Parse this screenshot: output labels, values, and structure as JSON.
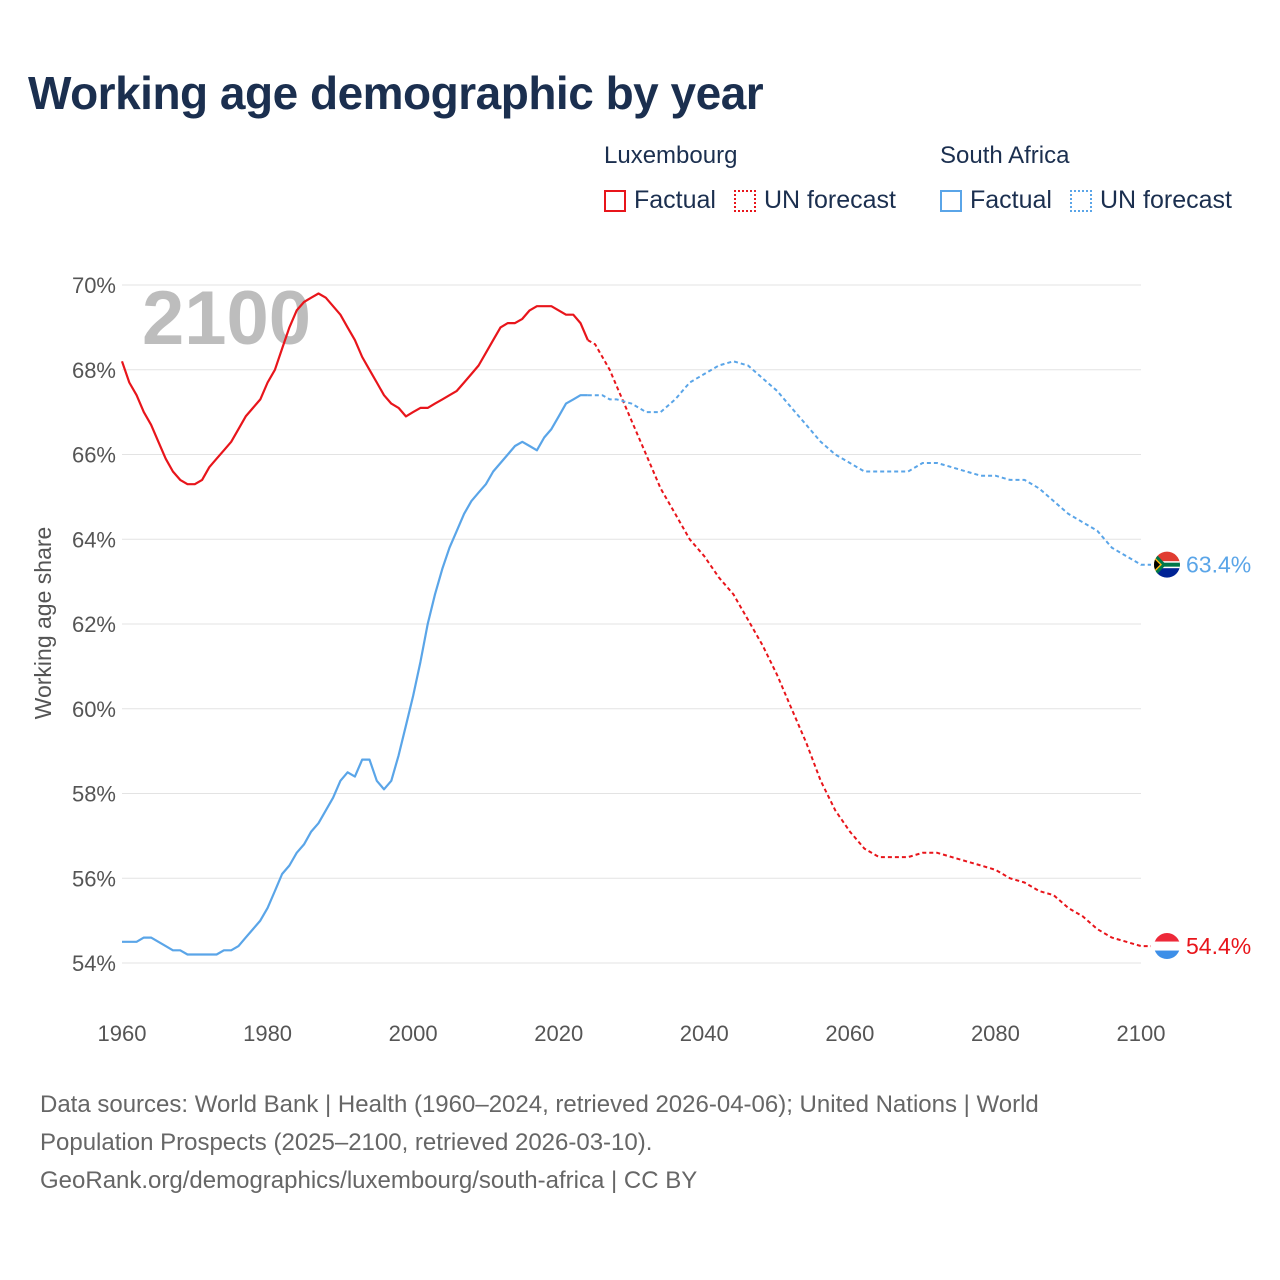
{
  "title": "Working age demographic by year",
  "legend": {
    "groups": [
      {
        "name": "Luxembourg",
        "color": "#e8151b",
        "factual_label": "Factual",
        "forecast_label": "UN forecast"
      },
      {
        "name": "South Africa",
        "color": "#5aa5e8",
        "factual_label": "Factual",
        "forecast_label": "UN forecast"
      }
    ]
  },
  "chart_data": {
    "type": "line",
    "title": "Working age demographic by year",
    "xlabel": "",
    "ylabel": "Working age share",
    "xlim": [
      1960,
      2100
    ],
    "ylim": [
      54,
      70
    ],
    "x_ticks": [
      "1960",
      "1980",
      "2000",
      "2020",
      "2040",
      "2060",
      "2080",
      "2100"
    ],
    "y_ticks": [
      "54%",
      "56%",
      "58%",
      "60%",
      "62%",
      "64%",
      "66%",
      "68%",
      "70%"
    ],
    "year_overlay": "2100",
    "factual_end_year": 2024,
    "series": [
      {
        "name": "Luxembourg",
        "color": "#e8151b",
        "end_label": "54.4%",
        "x": [
          1960,
          1961,
          1962,
          1963,
          1964,
          1965,
          1966,
          1967,
          1968,
          1969,
          1970,
          1971,
          1972,
          1973,
          1974,
          1975,
          1976,
          1977,
          1978,
          1979,
          1980,
          1981,
          1982,
          1983,
          1984,
          1985,
          1986,
          1987,
          1988,
          1989,
          1990,
          1991,
          1992,
          1993,
          1994,
          1995,
          1996,
          1997,
          1998,
          1999,
          2000,
          2001,
          2002,
          2003,
          2004,
          2005,
          2006,
          2007,
          2008,
          2009,
          2010,
          2011,
          2012,
          2013,
          2014,
          2015,
          2016,
          2017,
          2018,
          2019,
          2020,
          2021,
          2022,
          2023,
          2024,
          2025,
          2026,
          2027,
          2028,
          2029,
          2030,
          2032,
          2034,
          2036,
          2038,
          2040,
          2042,
          2044,
          2046,
          2048,
          2050,
          2052,
          2054,
          2056,
          2058,
          2060,
          2062,
          2064,
          2066,
          2068,
          2070,
          2072,
          2074,
          2076,
          2078,
          2080,
          2082,
          2084,
          2086,
          2088,
          2090,
          2092,
          2094,
          2096,
          2098,
          2100
        ],
        "values": [
          68.2,
          67.7,
          67.4,
          67.0,
          66.7,
          66.3,
          65.9,
          65.6,
          65.4,
          65.3,
          65.3,
          65.4,
          65.7,
          65.9,
          66.1,
          66.3,
          66.6,
          66.9,
          67.1,
          67.3,
          67.7,
          68.0,
          68.5,
          69.0,
          69.4,
          69.6,
          69.7,
          69.8,
          69.7,
          69.5,
          69.3,
          69.0,
          68.7,
          68.3,
          68.0,
          67.7,
          67.4,
          67.2,
          67.1,
          66.9,
          67.0,
          67.1,
          67.1,
          67.2,
          67.3,
          67.4,
          67.5,
          67.7,
          67.9,
          68.1,
          68.4,
          68.7,
          69.0,
          69.1,
          69.1,
          69.2,
          69.4,
          69.5,
          69.5,
          69.5,
          69.4,
          69.3,
          69.3,
          69.1,
          68.7,
          68.6,
          68.3,
          68.0,
          67.6,
          67.2,
          66.8,
          66.0,
          65.2,
          64.6,
          64.0,
          63.6,
          63.1,
          62.7,
          62.1,
          61.5,
          60.8,
          60.0,
          59.2,
          58.3,
          57.6,
          57.1,
          56.7,
          56.5,
          56.5,
          56.5,
          56.6,
          56.6,
          56.5,
          56.4,
          56.3,
          56.2,
          56.0,
          55.9,
          55.7,
          55.6,
          55.3,
          55.1,
          54.8,
          54.6,
          54.5,
          54.4
        ]
      },
      {
        "name": "South Africa",
        "color": "#5aa5e8",
        "end_label": "63.4%",
        "x": [
          1960,
          1962,
          1963,
          1964,
          1965,
          1966,
          1967,
          1968,
          1969,
          1970,
          1971,
          1972,
          1973,
          1974,
          1975,
          1976,
          1977,
          1978,
          1979,
          1980,
          1981,
          1982,
          1983,
          1984,
          1985,
          1986,
          1987,
          1988,
          1989,
          1990,
          1991,
          1992,
          1993,
          1994,
          1995,
          1996,
          1997,
          1998,
          1999,
          2000,
          2001,
          2002,
          2003,
          2004,
          2005,
          2006,
          2007,
          2008,
          2009,
          2010,
          2011,
          2012,
          2013,
          2014,
          2015,
          2016,
          2017,
          2018,
          2019,
          2020,
          2021,
          2022,
          2023,
          2024,
          2025,
          2026,
          2027,
          2028,
          2030,
          2032,
          2034,
          2036,
          2038,
          2040,
          2042,
          2044,
          2046,
          2048,
          2050,
          2052,
          2054,
          2056,
          2058,
          2060,
          2062,
          2064,
          2066,
          2068,
          2070,
          2072,
          2074,
          2076,
          2078,
          2080,
          2082,
          2084,
          2086,
          2088,
          2090,
          2092,
          2094,
          2096,
          2098,
          2100
        ],
        "values": [
          54.5,
          54.5,
          54.6,
          54.6,
          54.5,
          54.4,
          54.3,
          54.3,
          54.2,
          54.2,
          54.2,
          54.2,
          54.2,
          54.3,
          54.3,
          54.4,
          54.6,
          54.8,
          55.0,
          55.3,
          55.7,
          56.1,
          56.3,
          56.6,
          56.8,
          57.1,
          57.3,
          57.6,
          57.9,
          58.3,
          58.5,
          58.4,
          58.8,
          58.8,
          58.3,
          58.1,
          58.3,
          58.9,
          59.6,
          60.3,
          61.1,
          62.0,
          62.7,
          63.3,
          63.8,
          64.2,
          64.6,
          64.9,
          65.1,
          65.3,
          65.6,
          65.8,
          66.0,
          66.2,
          66.3,
          66.2,
          66.1,
          66.4,
          66.6,
          66.9,
          67.2,
          67.3,
          67.4,
          67.4,
          67.4,
          67.4,
          67.3,
          67.3,
          67.2,
          67.0,
          67.0,
          67.3,
          67.7,
          67.9,
          68.1,
          68.2,
          68.1,
          67.8,
          67.5,
          67.1,
          66.7,
          66.3,
          66.0,
          65.8,
          65.6,
          65.6,
          65.6,
          65.6,
          65.8,
          65.8,
          65.7,
          65.6,
          65.5,
          65.5,
          65.4,
          65.4,
          65.2,
          64.9,
          64.6,
          64.4,
          64.2,
          63.8,
          63.6,
          63.4
        ]
      }
    ]
  },
  "sources": {
    "line1": "Data sources: World Bank | Health (1960–2024, retrieved 2026-04-06); United Nations | World",
    "line2": "Population Prospects (2025–2100, retrieved 2026-03-10).",
    "line3": "GeoRank.org/demographics/luxembourg/south-africa | CC BY"
  }
}
